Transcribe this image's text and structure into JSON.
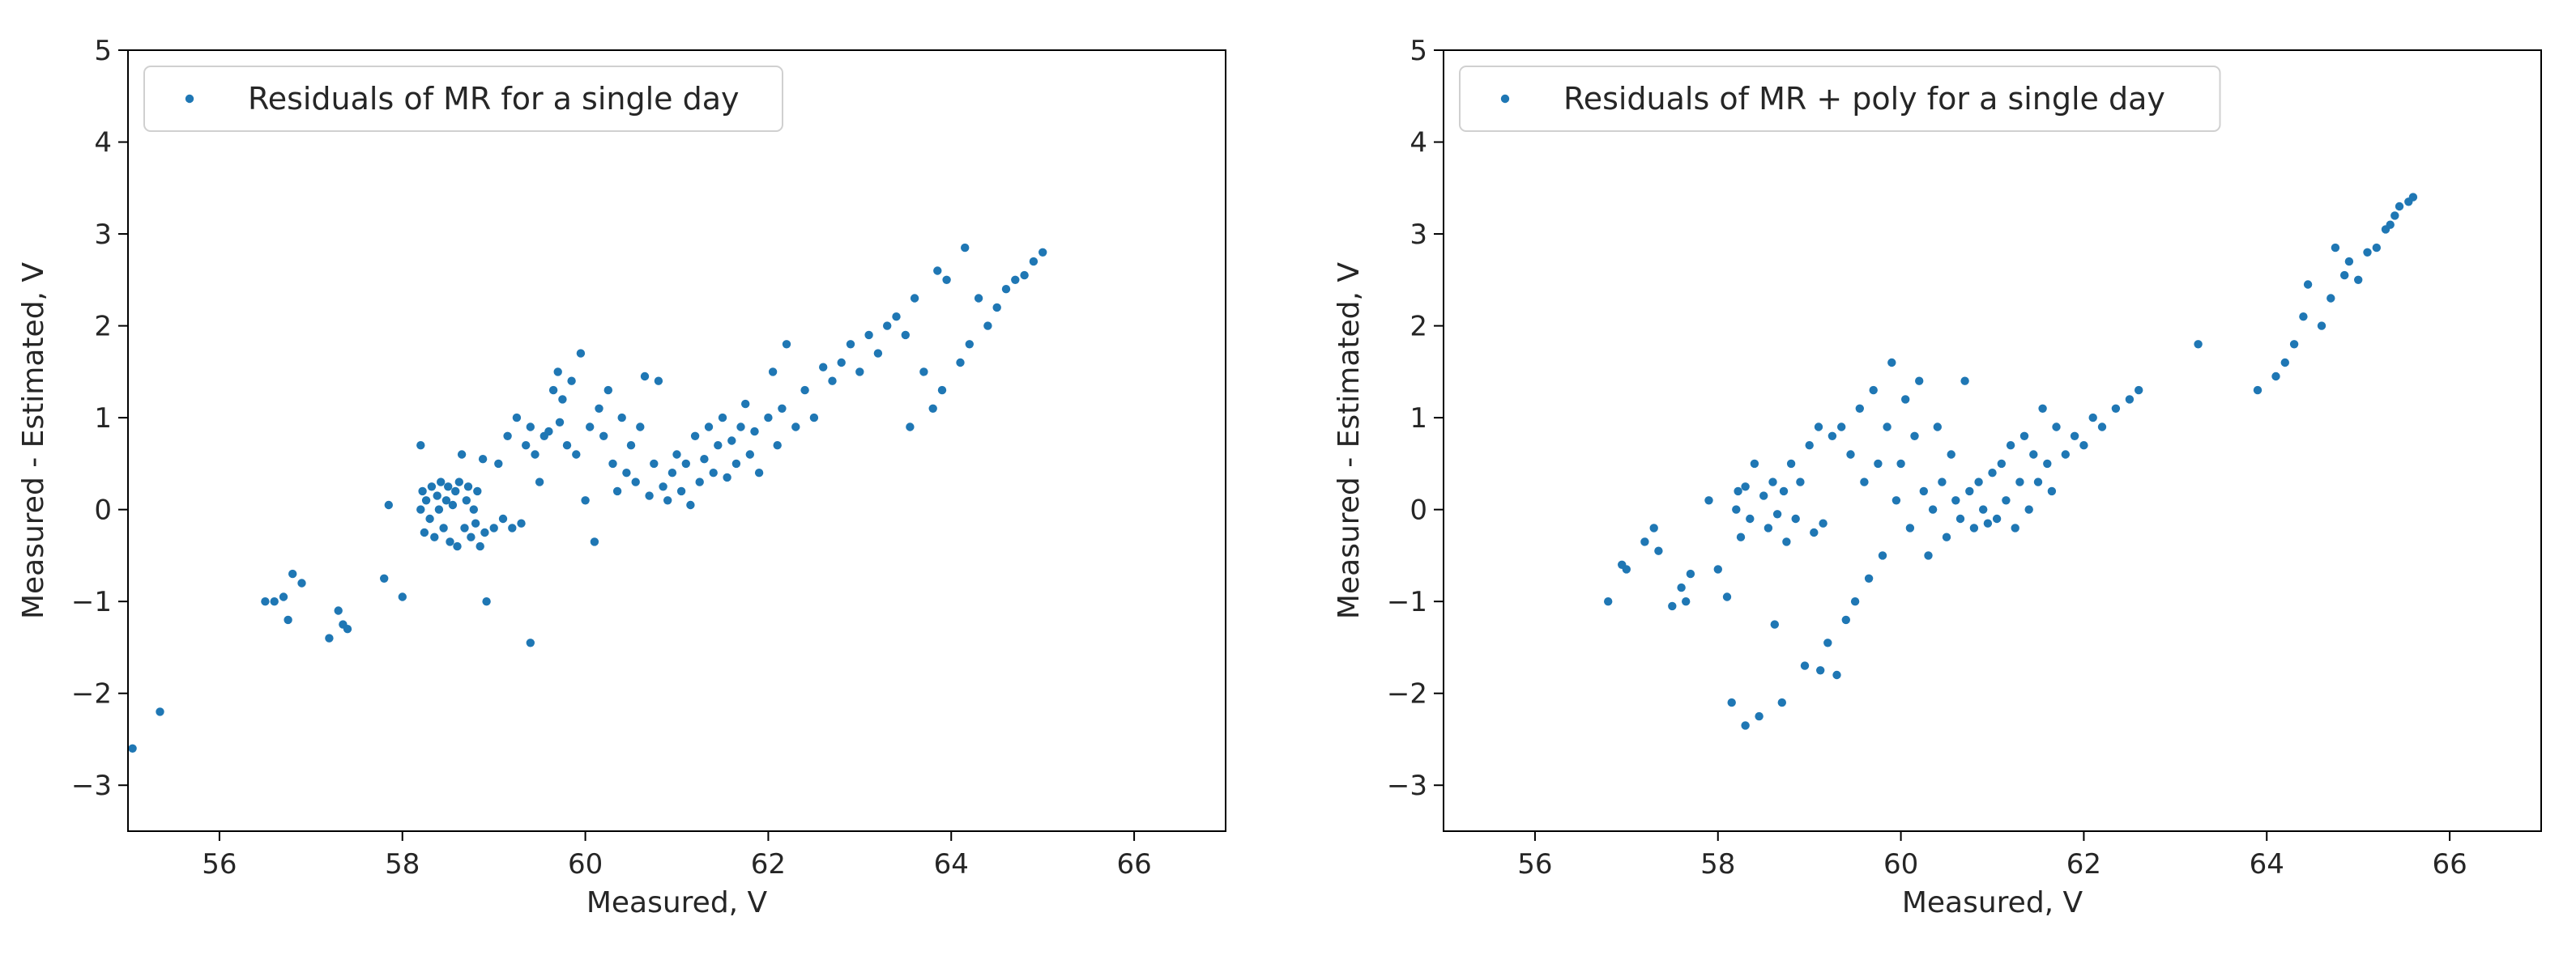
{
  "chart_data": [
    {
      "type": "scatter",
      "title": "",
      "xlabel": "Measured, V",
      "ylabel": "Measured - Estimated, V",
      "xlim": [
        55,
        67
      ],
      "ylim": [
        -3.5,
        5
      ],
      "xticks": [
        "56",
        "58",
        "60",
        "62",
        "64",
        "66"
      ],
      "yticks": [
        "−3",
        "−2",
        "−1",
        "0",
        "1",
        "2",
        "3",
        "4",
        "5"
      ],
      "grid": false,
      "legend_position": "top-left",
      "color": "#1f77b4",
      "series": [
        {
          "name": "Residuals of MR for a single day",
          "points": [
            [
              55.05,
              -2.6
            ],
            [
              55.35,
              -2.2
            ],
            [
              56.5,
              -1.0
            ],
            [
              56.6,
              -1.0
            ],
            [
              56.7,
              -0.95
            ],
            [
              56.75,
              -1.2
            ],
            [
              56.8,
              -0.7
            ],
            [
              56.9,
              -0.8
            ],
            [
              57.2,
              -1.4
            ],
            [
              57.3,
              -1.1
            ],
            [
              57.35,
              -1.25
            ],
            [
              57.4,
              -1.3
            ],
            [
              57.8,
              -0.75
            ],
            [
              57.85,
              0.05
            ],
            [
              58.0,
              -0.95
            ],
            [
              58.2,
              0.7
            ],
            [
              58.2,
              0.0
            ],
            [
              58.22,
              0.2
            ],
            [
              58.24,
              -0.25
            ],
            [
              58.26,
              0.1
            ],
            [
              58.3,
              -0.1
            ],
            [
              58.32,
              0.25
            ],
            [
              58.35,
              -0.3
            ],
            [
              58.38,
              0.15
            ],
            [
              58.4,
              0.0
            ],
            [
              58.42,
              0.3
            ],
            [
              58.45,
              -0.2
            ],
            [
              58.48,
              0.1
            ],
            [
              58.5,
              0.25
            ],
            [
              58.52,
              -0.35
            ],
            [
              58.55,
              0.05
            ],
            [
              58.58,
              0.2
            ],
            [
              58.6,
              -0.4
            ],
            [
              58.62,
              0.3
            ],
            [
              58.65,
              0.6
            ],
            [
              58.68,
              -0.2
            ],
            [
              58.7,
              0.1
            ],
            [
              58.72,
              0.25
            ],
            [
              58.75,
              -0.3
            ],
            [
              58.78,
              0.0
            ],
            [
              58.8,
              -0.15
            ],
            [
              58.82,
              0.2
            ],
            [
              58.85,
              -0.4
            ],
            [
              58.88,
              0.55
            ],
            [
              58.9,
              -0.25
            ],
            [
              58.92,
              -1.0
            ],
            [
              59.0,
              -0.2
            ],
            [
              59.05,
              0.5
            ],
            [
              59.1,
              -0.1
            ],
            [
              59.15,
              0.8
            ],
            [
              59.2,
              -0.2
            ],
            [
              59.25,
              1.0
            ],
            [
              59.3,
              -0.15
            ],
            [
              59.35,
              0.7
            ],
            [
              59.4,
              0.9
            ],
            [
              59.4,
              -1.45
            ],
            [
              59.45,
              0.6
            ],
            [
              59.5,
              0.3
            ],
            [
              59.55,
              0.8
            ],
            [
              59.6,
              0.85
            ],
            [
              59.65,
              1.3
            ],
            [
              59.7,
              1.5
            ],
            [
              59.72,
              0.95
            ],
            [
              59.75,
              1.2
            ],
            [
              59.8,
              0.7
            ],
            [
              59.85,
              1.4
            ],
            [
              59.9,
              0.6
            ],
            [
              59.95,
              1.7
            ],
            [
              60.0,
              0.1
            ],
            [
              60.05,
              0.9
            ],
            [
              60.1,
              -0.35
            ],
            [
              60.15,
              1.1
            ],
            [
              60.2,
              0.8
            ],
            [
              60.25,
              1.3
            ],
            [
              60.3,
              0.5
            ],
            [
              60.35,
              0.2
            ],
            [
              60.4,
              1.0
            ],
            [
              60.45,
              0.4
            ],
            [
              60.5,
              0.7
            ],
            [
              60.55,
              0.3
            ],
            [
              60.6,
              0.9
            ],
            [
              60.65,
              1.45
            ],
            [
              60.7,
              0.15
            ],
            [
              60.75,
              0.5
            ],
            [
              60.8,
              1.4
            ],
            [
              60.85,
              0.25
            ],
            [
              60.9,
              0.1
            ],
            [
              60.95,
              0.4
            ],
            [
              61.0,
              0.6
            ],
            [
              61.05,
              0.2
            ],
            [
              61.1,
              0.5
            ],
            [
              61.15,
              0.05
            ],
            [
              61.2,
              0.8
            ],
            [
              61.25,
              0.3
            ],
            [
              61.3,
              0.55
            ],
            [
              61.35,
              0.9
            ],
            [
              61.4,
              0.4
            ],
            [
              61.45,
              0.7
            ],
            [
              61.5,
              1.0
            ],
            [
              61.55,
              0.35
            ],
            [
              61.6,
              0.75
            ],
            [
              61.65,
              0.5
            ],
            [
              61.7,
              0.9
            ],
            [
              61.75,
              1.15
            ],
            [
              61.8,
              0.6
            ],
            [
              61.85,
              0.85
            ],
            [
              61.9,
              0.4
            ],
            [
              62.0,
              1.0
            ],
            [
              62.05,
              1.5
            ],
            [
              62.1,
              0.7
            ],
            [
              62.15,
              1.1
            ],
            [
              62.2,
              1.8
            ],
            [
              62.3,
              0.9
            ],
            [
              62.4,
              1.3
            ],
            [
              62.5,
              1.0
            ],
            [
              62.6,
              1.55
            ],
            [
              62.7,
              1.4
            ],
            [
              62.8,
              1.6
            ],
            [
              62.9,
              1.8
            ],
            [
              63.0,
              1.5
            ],
            [
              63.1,
              1.9
            ],
            [
              63.2,
              1.7
            ],
            [
              63.3,
              2.0
            ],
            [
              63.4,
              2.1
            ],
            [
              63.5,
              1.9
            ],
            [
              63.55,
              0.9
            ],
            [
              63.6,
              2.3
            ],
            [
              63.7,
              1.5
            ],
            [
              63.8,
              1.1
            ],
            [
              63.85,
              2.6
            ],
            [
              63.9,
              1.3
            ],
            [
              63.95,
              2.5
            ],
            [
              64.1,
              1.6
            ],
            [
              64.15,
              2.85
            ],
            [
              64.2,
              1.8
            ],
            [
              64.3,
              2.3
            ],
            [
              64.4,
              2.0
            ],
            [
              64.5,
              2.2
            ],
            [
              64.6,
              2.4
            ],
            [
              64.7,
              2.5
            ],
            [
              64.8,
              2.55
            ],
            [
              64.9,
              2.7
            ],
            [
              65.0,
              2.8
            ]
          ]
        }
      ]
    },
    {
      "type": "scatter",
      "title": "",
      "xlabel": "Measured, V",
      "ylabel": "Measured - Estimated, V",
      "xlim": [
        55,
        67
      ],
      "ylim": [
        -3.5,
        5
      ],
      "xticks": [
        "56",
        "58",
        "60",
        "62",
        "64",
        "66"
      ],
      "yticks": [
        "−3",
        "−2",
        "−1",
        "0",
        "1",
        "2",
        "3",
        "4",
        "5"
      ],
      "grid": false,
      "legend_position": "top-left",
      "color": "#1f77b4",
      "series": [
        {
          "name": "Residuals of MR + poly for a single day",
          "points": [
            [
              56.8,
              -1.0
            ],
            [
              56.95,
              -0.6
            ],
            [
              57.0,
              -0.65
            ],
            [
              57.2,
              -0.35
            ],
            [
              57.3,
              -0.2
            ],
            [
              57.35,
              -0.45
            ],
            [
              57.5,
              -1.05
            ],
            [
              57.6,
              -0.85
            ],
            [
              57.65,
              -1.0
            ],
            [
              57.7,
              -0.7
            ],
            [
              57.9,
              0.1
            ],
            [
              58.0,
              -0.65
            ],
            [
              58.1,
              -0.95
            ],
            [
              58.15,
              -2.1
            ],
            [
              58.2,
              0.0
            ],
            [
              58.22,
              0.2
            ],
            [
              58.25,
              -0.3
            ],
            [
              58.3,
              -2.35
            ],
            [
              58.3,
              0.25
            ],
            [
              58.35,
              -0.1
            ],
            [
              58.4,
              0.5
            ],
            [
              58.45,
              -2.25
            ],
            [
              58.5,
              0.15
            ],
            [
              58.55,
              -0.2
            ],
            [
              58.6,
              0.3
            ],
            [
              58.62,
              -1.25
            ],
            [
              58.65,
              -0.05
            ],
            [
              58.7,
              -2.1
            ],
            [
              58.72,
              0.2
            ],
            [
              58.75,
              -0.35
            ],
            [
              58.8,
              0.5
            ],
            [
              58.85,
              -0.1
            ],
            [
              58.9,
              0.3
            ],
            [
              58.95,
              -1.7
            ],
            [
              59.0,
              0.7
            ],
            [
              59.05,
              -0.25
            ],
            [
              59.1,
              0.9
            ],
            [
              59.12,
              -1.75
            ],
            [
              59.15,
              -0.15
            ],
            [
              59.2,
              -1.45
            ],
            [
              59.25,
              0.8
            ],
            [
              59.3,
              -1.8
            ],
            [
              59.35,
              0.9
            ],
            [
              59.4,
              -1.2
            ],
            [
              59.45,
              0.6
            ],
            [
              59.5,
              -1.0
            ],
            [
              59.55,
              1.1
            ],
            [
              59.6,
              0.3
            ],
            [
              59.65,
              -0.75
            ],
            [
              59.7,
              1.3
            ],
            [
              59.75,
              0.5
            ],
            [
              59.8,
              -0.5
            ],
            [
              59.85,
              0.9
            ],
            [
              59.9,
              1.6
            ],
            [
              59.95,
              0.1
            ],
            [
              60.0,
              0.5
            ],
            [
              60.05,
              1.2
            ],
            [
              60.1,
              -0.2
            ],
            [
              60.15,
              0.8
            ],
            [
              60.2,
              1.4
            ],
            [
              60.25,
              0.2
            ],
            [
              60.3,
              -0.5
            ],
            [
              60.35,
              0.0
            ],
            [
              60.4,
              0.9
            ],
            [
              60.45,
              0.3
            ],
            [
              60.5,
              -0.3
            ],
            [
              60.55,
              0.6
            ],
            [
              60.6,
              0.1
            ],
            [
              60.65,
              -0.1
            ],
            [
              60.7,
              1.4
            ],
            [
              60.75,
              0.2
            ],
            [
              60.8,
              -0.2
            ],
            [
              60.85,
              0.3
            ],
            [
              60.9,
              0.0
            ],
            [
              60.95,
              -0.15
            ],
            [
              61.0,
              0.4
            ],
            [
              61.05,
              -0.1
            ],
            [
              61.1,
              0.5
            ],
            [
              61.15,
              0.1
            ],
            [
              61.2,
              0.7
            ],
            [
              61.25,
              -0.2
            ],
            [
              61.3,
              0.3
            ],
            [
              61.35,
              0.8
            ],
            [
              61.4,
              0.0
            ],
            [
              61.45,
              0.6
            ],
            [
              61.5,
              0.3
            ],
            [
              61.55,
              1.1
            ],
            [
              61.6,
              0.5
            ],
            [
              61.65,
              0.2
            ],
            [
              61.7,
              0.9
            ],
            [
              61.8,
              0.6
            ],
            [
              61.9,
              0.8
            ],
            [
              62.0,
              0.7
            ],
            [
              62.1,
              1.0
            ],
            [
              62.2,
              0.9
            ],
            [
              62.35,
              1.1
            ],
            [
              62.5,
              1.2
            ],
            [
              62.6,
              1.3
            ],
            [
              63.25,
              1.8
            ],
            [
              63.9,
              1.3
            ],
            [
              64.1,
              1.45
            ],
            [
              64.2,
              1.6
            ],
            [
              64.3,
              1.8
            ],
            [
              64.4,
              2.1
            ],
            [
              64.45,
              2.45
            ],
            [
              64.6,
              2.0
            ],
            [
              64.7,
              2.3
            ],
            [
              64.75,
              2.85
            ],
            [
              64.85,
              2.55
            ],
            [
              64.9,
              2.7
            ],
            [
              65.0,
              2.5
            ],
            [
              65.1,
              2.8
            ],
            [
              65.2,
              2.85
            ],
            [
              65.3,
              3.05
            ],
            [
              65.35,
              3.1
            ],
            [
              65.4,
              3.2
            ],
            [
              65.45,
              3.3
            ],
            [
              65.55,
              3.35
            ],
            [
              65.6,
              3.4
            ]
          ]
        }
      ]
    }
  ]
}
